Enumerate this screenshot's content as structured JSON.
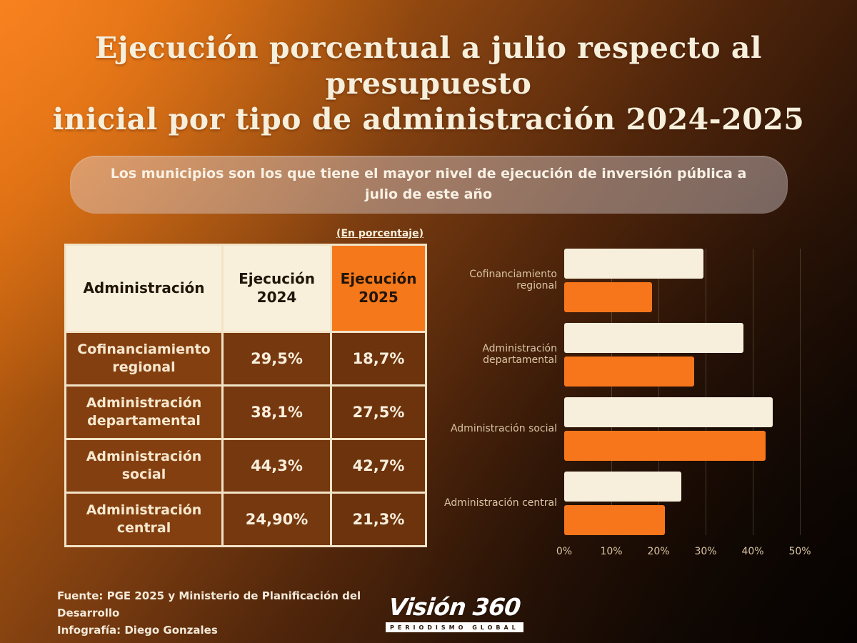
{
  "title_lines": [
    "Ejecución porcentual a julio  respecto al presupuesto",
    "inicial por tipo de  administración  2024-2025"
  ],
  "banner": {
    "text": "Los municipios son los que tiene el mayor nivel de ejecución de inversión pública a julio de este año"
  },
  "unit_note": "(En porcentaje)",
  "table": {
    "headers": [
      "Administración",
      "Ejecución 2024",
      "Ejecución 2025"
    ],
    "rows": [
      {
        "label": "Cofinanciamiento regional",
        "ejecucion_2024": "29,5%",
        "ejecucion_2025": "18,7%"
      },
      {
        "label": "Administración departamental",
        "ejecucion_2024": "38,1%",
        "ejecucion_2025": "27,5%"
      },
      {
        "label": "Administración social",
        "ejecucion_2024": "44,3%",
        "ejecucion_2025": "42,7%"
      },
      {
        "label": "Administración central",
        "ejecucion_2024": "24,90%",
        "ejecucion_2025": "21,3%"
      }
    ]
  },
  "chart_data": {
    "type": "bar",
    "orientation": "horizontal",
    "title": "",
    "categories": [
      "Cofinanciamiento regional",
      "Administración departamental",
      "Administración social",
      "Administración central"
    ],
    "series": [
      {
        "name": "Ejecución 2024",
        "color": "#f7efdc",
        "values": [
          29.5,
          38.1,
          44.3,
          24.9
        ]
      },
      {
        "name": "Ejecución 2025",
        "color": "#f8761b",
        "values": [
          18.7,
          27.5,
          42.7,
          21.3
        ]
      }
    ],
    "xlim": [
      0,
      50
    ],
    "x_ticks": [
      "0%",
      "10%",
      "20%",
      "30%",
      "40%",
      "50%"
    ],
    "grid": true,
    "legend_position": "none"
  },
  "footer": {
    "source": "Fuente:  PGE 2025 y Ministerio de Planificación del Desarrollo",
    "credit": "Infografía: Diego Gonzales",
    "logo": {
      "title": "Visión 360",
      "subtitle": "PERIODISMO GLOBAL"
    }
  },
  "colors": {
    "accent_orange": "#f8761b",
    "cream": "#f7efdc",
    "header_cream_bg": "#f8f0db",
    "table_row_brown": "#7a3a10",
    "border_cream": "#f2e3c6",
    "header_text_dark": "#221509",
    "chart_label_tan": "#d9c4a3",
    "background_top_left": "#f0761a",
    "background_bottom_right": "#0c0502"
  }
}
